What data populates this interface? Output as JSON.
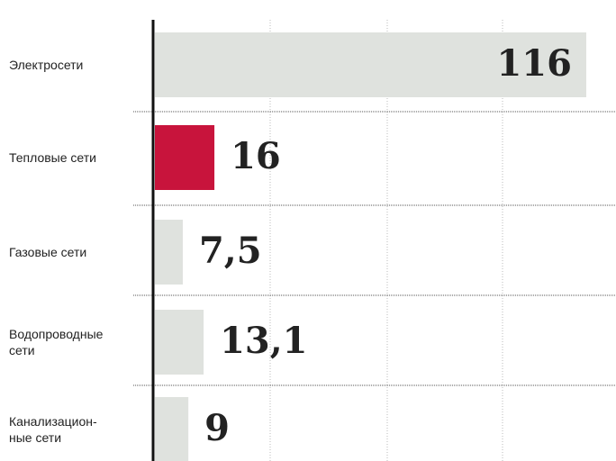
{
  "chart_data": {
    "type": "hbar",
    "categories": [
      "Электросети",
      "Тепловые сети",
      "Газовые сети",
      "Водопроводные\nсети",
      "Канализацион-\nные сети"
    ],
    "values": [
      116,
      16,
      7.5,
      13.1,
      9
    ],
    "value_labels": [
      "116",
      "16",
      "7,5",
      "13,1",
      "9"
    ],
    "colors": [
      "#dfe2de",
      "#c8143c",
      "#dfe2de",
      "#dfe2de",
      "#dfe2de"
    ],
    "xlim": [
      0,
      124
    ]
  }
}
